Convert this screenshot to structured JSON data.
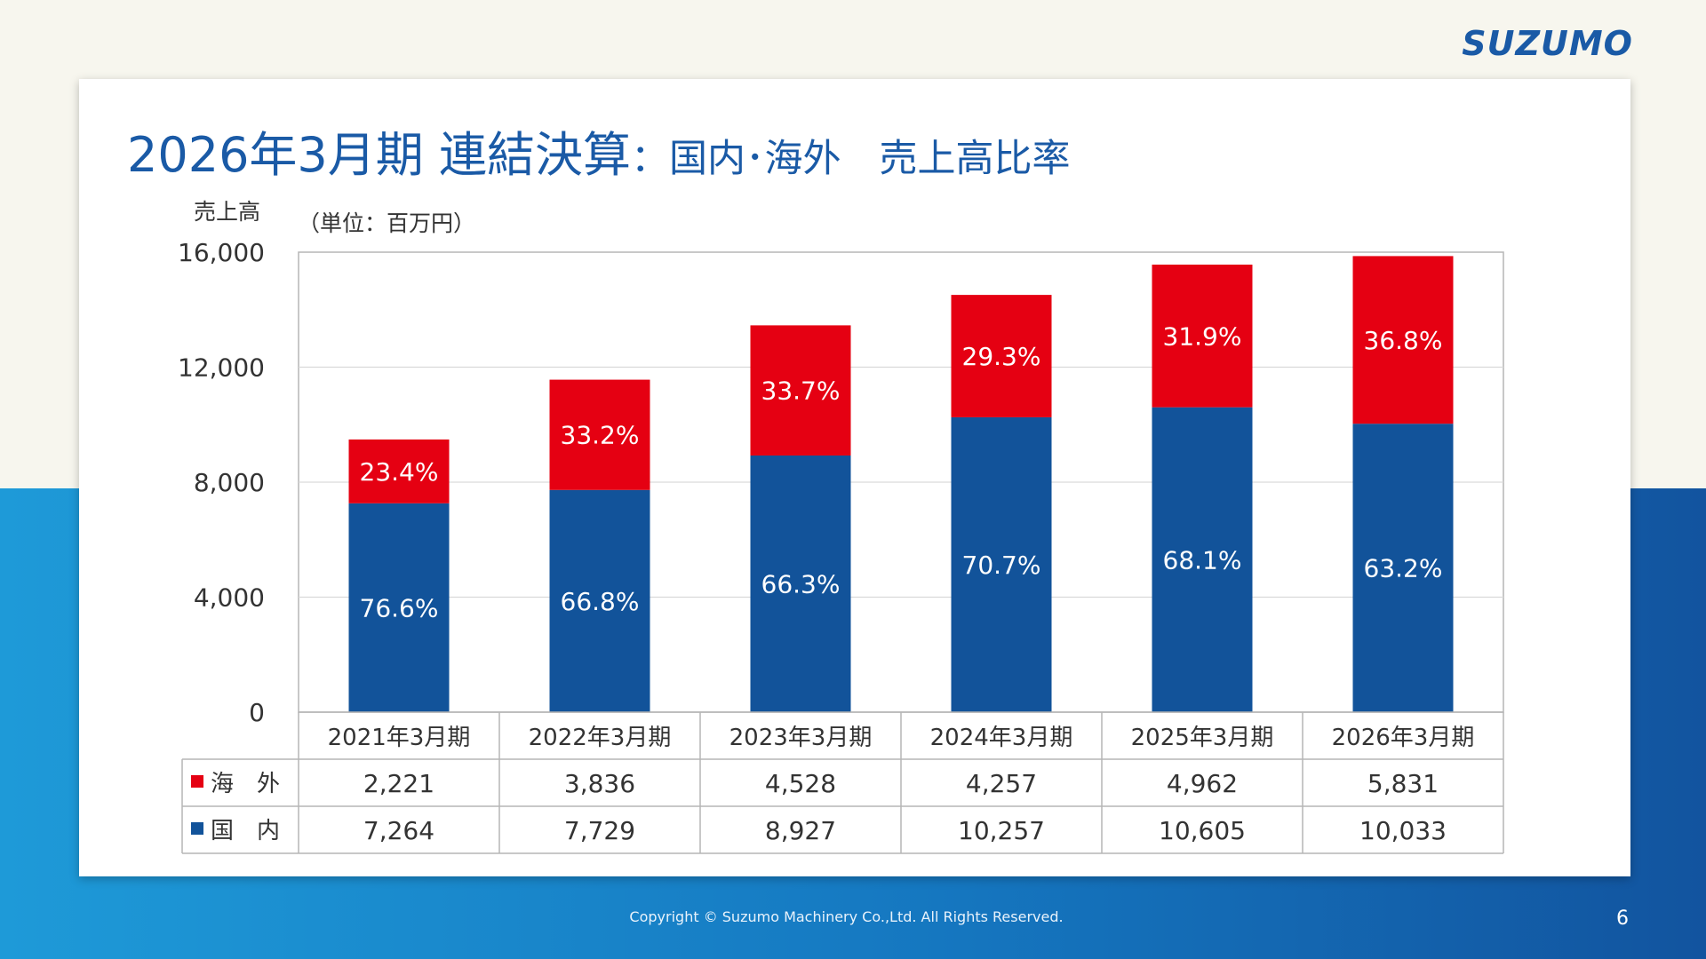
{
  "brand": {
    "logo_text": "SUZUMO",
    "color": "#1a5aa6"
  },
  "title": {
    "main": "2026年3月期 連結決算",
    "sub": "：国内･海外　売上高比率"
  },
  "chart_data": {
    "type": "bar",
    "stacked": true,
    "ylabel": "売上高",
    "unit_note": "（単位：百万円）",
    "ylim": [
      0,
      16000
    ],
    "yticks": [
      "0",
      "4,000",
      "8,000",
      "12,000",
      "16,000"
    ],
    "ytick_values": [
      0,
      4000,
      8000,
      12000,
      16000
    ],
    "grid": true,
    "categories": [
      "2021年3月期",
      "2022年3月期",
      "2023年3月期",
      "2024年3月期",
      "2025年3月期",
      "2026年3月期"
    ],
    "series": [
      {
        "name": "国　内",
        "color": "#12539a",
        "values": [
          7264,
          7729,
          8927,
          10257,
          10605,
          10033
        ],
        "value_labels": [
          "7,264",
          "7,729",
          "8,927",
          "10,257",
          "10,605",
          "10,033"
        ],
        "pct_labels": [
          "76.6%",
          "66.8%",
          "66.3%",
          "70.7%",
          "68.1%",
          "63.2%"
        ]
      },
      {
        "name": "海　外",
        "color": "#e50012",
        "values": [
          2221,
          3836,
          4528,
          4257,
          4962,
          5831
        ],
        "value_labels": [
          "2,221",
          "3,836",
          "4,528",
          "4,257",
          "4,962",
          "5,831"
        ],
        "pct_labels": [
          "23.4%",
          "33.2%",
          "33.7%",
          "29.3%",
          "31.9%",
          "36.8%"
        ]
      }
    ],
    "table_row_order": [
      "海　外",
      "国　内"
    ]
  },
  "footer": {
    "copyright": "Copyright © Suzumo Machinery Co.,Ltd. All Rights Reserved.",
    "page_number": "6"
  }
}
